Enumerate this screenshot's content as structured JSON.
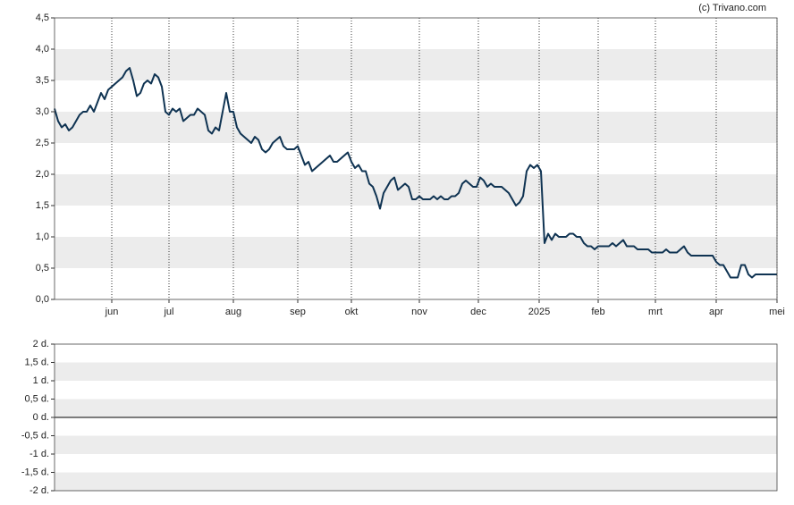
{
  "chart_data": [
    {
      "type": "line",
      "annotation": "(c) Trivano.com",
      "color": "#0f3352",
      "grid": true,
      "values": [
        3.05,
        2.85,
        2.75,
        2.8,
        2.7,
        2.75,
        2.85,
        2.95,
        3.0,
        3.0,
        3.1,
        3.0,
        3.15,
        3.3,
        3.2,
        3.35,
        3.4,
        3.45,
        3.5,
        3.55,
        3.65,
        3.7,
        3.5,
        3.25,
        3.3,
        3.45,
        3.5,
        3.45,
        3.6,
        3.55,
        3.4,
        3.0,
        2.95,
        3.05,
        3.0,
        3.05,
        2.85,
        2.9,
        2.95,
        2.95,
        3.05,
        3.0,
        2.95,
        2.7,
        2.65,
        2.75,
        2.7,
        3.0,
        3.3,
        3.0,
        3.0,
        2.75,
        2.65,
        2.6,
        2.55,
        2.5,
        2.6,
        2.55,
        2.4,
        2.35,
        2.4,
        2.5,
        2.55,
        2.6,
        2.45,
        2.4,
        2.4,
        2.4,
        2.45,
        2.3,
        2.15,
        2.2,
        2.05,
        2.1,
        2.15,
        2.2,
        2.25,
        2.3,
        2.2,
        2.2,
        2.25,
        2.3,
        2.35,
        2.2,
        2.1,
        2.15,
        2.05,
        2.05,
        1.85,
        1.8,
        1.65,
        1.45,
        1.7,
        1.8,
        1.9,
        1.95,
        1.75,
        1.8,
        1.85,
        1.8,
        1.6,
        1.6,
        1.65,
        1.6,
        1.6,
        1.6,
        1.65,
        1.6,
        1.65,
        1.6,
        1.6,
        1.65,
        1.65,
        1.7,
        1.85,
        1.9,
        1.85,
        1.8,
        1.8,
        1.95,
        1.9,
        1.8,
        1.85,
        1.8,
        1.8,
        1.8,
        1.75,
        1.7,
        1.6,
        1.5,
        1.55,
        1.65,
        2.05,
        2.15,
        2.1,
        2.15,
        2.05,
        0.9,
        1.05,
        0.95,
        1.05,
        1.0,
        1.0,
        1.0,
        1.05,
        1.05,
        1.0,
        1.0,
        0.9,
        0.85,
        0.85,
        0.8,
        0.85,
        0.85,
        0.85,
        0.85,
        0.9,
        0.85,
        0.9,
        0.95,
        0.85,
        0.85,
        0.85,
        0.8,
        0.8,
        0.8,
        0.8,
        0.75,
        0.75,
        0.75,
        0.75,
        0.8,
        0.75,
        0.75,
        0.75,
        0.8,
        0.85,
        0.75,
        0.7,
        0.7,
        0.7,
        0.7,
        0.7,
        0.7,
        0.7,
        0.6,
        0.55,
        0.55,
        0.45,
        0.35,
        0.35,
        0.35,
        0.55,
        0.55,
        0.4,
        0.35,
        0.4,
        0.4,
        0.4,
        0.4,
        0.4,
        0.4,
        0.4
      ],
      "xlim": [
        0,
        202
      ],
      "xticks": [
        {
          "value": 16,
          "label": "jun"
        },
        {
          "value": 32,
          "label": "jul"
        },
        {
          "value": 50,
          "label": "aug"
        },
        {
          "value": 68,
          "label": "sep"
        },
        {
          "value": 83,
          "label": "okt"
        },
        {
          "value": 102,
          "label": "nov"
        },
        {
          "value": 118.5,
          "label": "dec"
        },
        {
          "value": 135.5,
          "label": "2025"
        },
        {
          "value": 152,
          "label": "feb"
        },
        {
          "value": 168,
          "label": "mrt"
        },
        {
          "value": 185,
          "label": "apr"
        },
        {
          "value": 202,
          "label": "mei"
        }
      ],
      "ylim": [
        0,
        4.5
      ],
      "yticks": [
        {
          "value": 4.5,
          "label": "4,5"
        },
        {
          "value": 4,
          "label": "4,0"
        },
        {
          "value": 3.5,
          "label": "3,5"
        },
        {
          "value": 3,
          "label": "3,0"
        },
        {
          "value": 2.5,
          "label": "2,5"
        },
        {
          "value": 2,
          "label": "2,0"
        },
        {
          "value": 1.5,
          "label": "1,5"
        },
        {
          "value": 1,
          "label": "1,0"
        },
        {
          "value": 0.5,
          "label": "0,5"
        },
        {
          "value": 0,
          "label": "0,0"
        }
      ]
    },
    {
      "type": "empty",
      "grid": true,
      "ylim": [
        -2,
        2
      ],
      "yticks": [
        {
          "value": 2,
          "label": "2 d."
        },
        {
          "value": 1.5,
          "label": "1,5 d."
        },
        {
          "value": 1,
          "label": "1 d."
        },
        {
          "value": 0.5,
          "label": "0,5 d."
        },
        {
          "value": 0,
          "label": "0 d."
        },
        {
          "value": -0.5,
          "label": "-0,5 d."
        },
        {
          "value": -1,
          "label": "-1 d."
        },
        {
          "value": -1.5,
          "label": "-1,5 d."
        },
        {
          "value": -2,
          "label": "-2 d."
        }
      ]
    }
  ]
}
